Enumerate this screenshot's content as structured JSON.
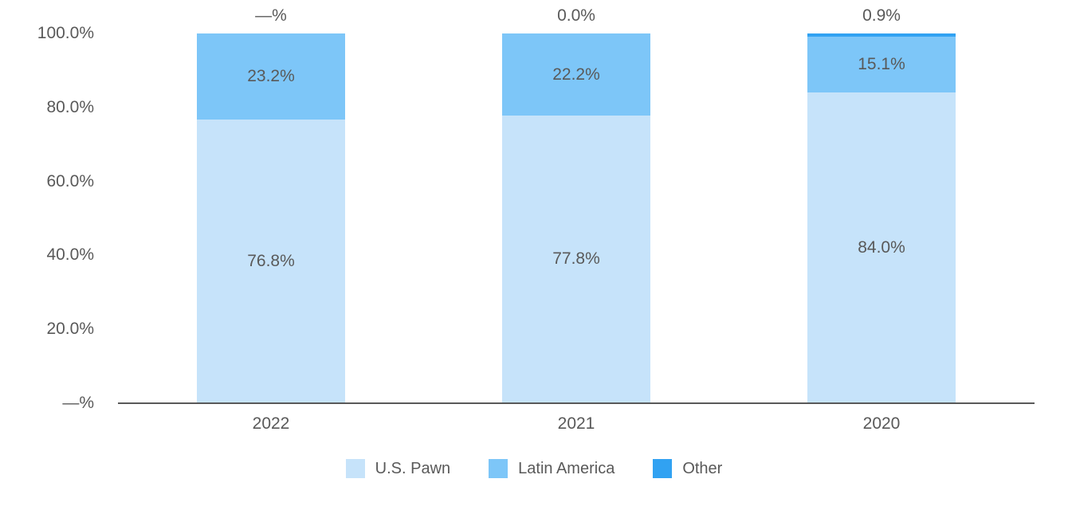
{
  "chart_data": {
    "type": "bar",
    "stacked": true,
    "title": "",
    "categories": [
      "2022",
      "2021",
      "2020"
    ],
    "series": [
      {
        "name": "U.S. Pawn",
        "color": "#C6E3FA",
        "values": [
          76.8,
          77.8,
          84.0
        ],
        "data_labels": [
          "76.8%",
          "77.8%",
          "84.0%"
        ],
        "label_position": "inside"
      },
      {
        "name": "Latin America",
        "color": "#7DC6F8",
        "values": [
          23.2,
          22.2,
          15.1
        ],
        "data_labels": [
          "23.2%",
          "22.2%",
          "15.1%"
        ],
        "label_position": "inside"
      },
      {
        "name": "Other",
        "color": "#31A2F2",
        "values": [
          0,
          0,
          0.9
        ],
        "data_labels": [
          "—%",
          "0.0%",
          "0.9%"
        ],
        "label_position": "above"
      }
    ],
    "y_axis": {
      "range": [
        0,
        100
      ],
      "ticks": [
        {
          "value": 0,
          "label": "—%"
        },
        {
          "value": 20,
          "label": "20.0%"
        },
        {
          "value": 40,
          "label": "40.0%"
        },
        {
          "value": 60,
          "label": "60.0%"
        },
        {
          "value": 80,
          "label": "80.0%"
        },
        {
          "value": 100,
          "label": "100.0%"
        }
      ]
    },
    "x_axis": {
      "labels": [
        "2022",
        "2021",
        "2020"
      ]
    },
    "legend": {
      "position": "bottom",
      "entries": [
        "U.S. Pawn",
        "Latin America",
        "Other"
      ]
    },
    "grid": false,
    "colors": {
      "text": "#595959",
      "axis": "#595959",
      "background": "#FFFFFF"
    }
  }
}
